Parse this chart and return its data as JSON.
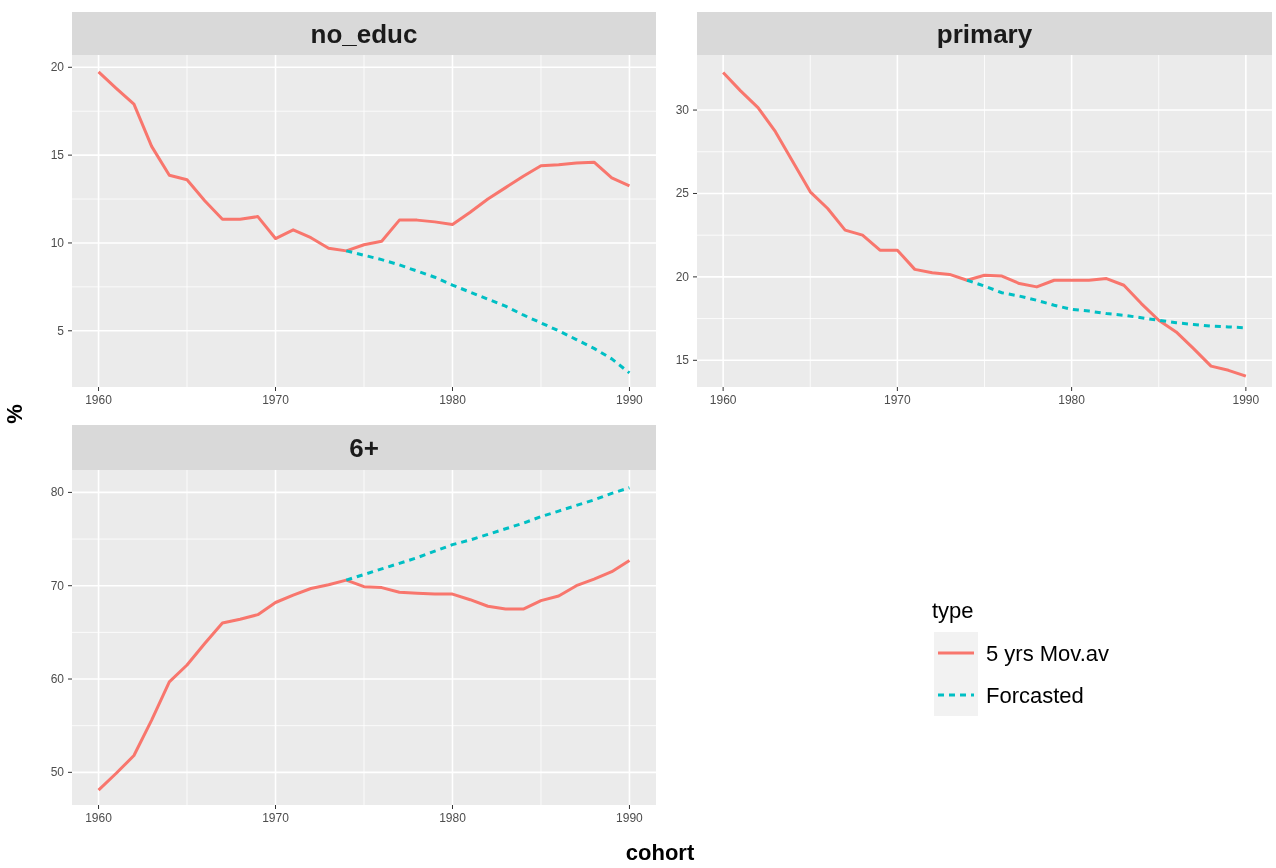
{
  "chart_data": [
    {
      "type": "line",
      "title": "no_educ",
      "ylabel": "%",
      "x": [
        1960,
        1961,
        1962,
        1963,
        1964,
        1965,
        1966,
        1967,
        1968,
        1969,
        1970,
        1971,
        1972,
        1973,
        1974,
        1975,
        1976,
        1977,
        1978,
        1979,
        1980,
        1981,
        1982,
        1983,
        1984,
        1985,
        1986,
        1987,
        1988,
        1989,
        1990
      ],
      "series": [
        {
          "color": "#f8766d",
          "line_style": "solid",
          "values": [
            19.74,
            18.8,
            17.9,
            15.5,
            13.85,
            13.6,
            12.4,
            11.35,
            11.35,
            11.5,
            10.25,
            10.75,
            10.3,
            9.7,
            9.55,
            9.9,
            10.1,
            11.3,
            11.3,
            11.2,
            11.05,
            11.75,
            12.5,
            13.15,
            13.8,
            14.4,
            14.45,
            14.55,
            14.6,
            13.7,
            13.25
          ]
        },
        {
          "color": "#00bfc4",
          "line_style": "dashed",
          "x": [
            1974,
            1975,
            1976,
            1977,
            1978,
            1979,
            1980,
            1981,
            1982,
            1983,
            1984,
            1985,
            1986,
            1987,
            1988,
            1989,
            1990
          ],
          "values": [
            9.55,
            9.3,
            9.05,
            8.75,
            8.4,
            8.05,
            7.6,
            7.2,
            6.8,
            6.4,
            5.9,
            5.45,
            5.0,
            4.5,
            4.0,
            3.4,
            2.6
          ]
        }
      ],
      "xlim": [
        1958.5,
        1991.5
      ],
      "xticks": [
        1960,
        1970,
        1980,
        1990
      ],
      "ylim": [
        1.8,
        20.7
      ],
      "yticks": [
        5,
        10,
        15,
        20
      ],
      "grid": true
    },
    {
      "type": "line",
      "title": "primary",
      "x": [
        1960,
        1961,
        1962,
        1963,
        1964,
        1965,
        1966,
        1967,
        1968,
        1969,
        1970,
        1971,
        1972,
        1973,
        1974,
        1975,
        1976,
        1977,
        1978,
        1979,
        1980,
        1981,
        1982,
        1983,
        1984,
        1985,
        1986,
        1987,
        1988,
        1989,
        1990
      ],
      "series": [
        {
          "color": "#f8766d",
          "line_style": "solid",
          "values": [
            32.25,
            31.15,
            30.15,
            28.7,
            26.9,
            25.1,
            24.1,
            22.8,
            22.5,
            21.6,
            21.6,
            20.45,
            20.25,
            20.15,
            19.8,
            20.1,
            20.05,
            19.6,
            19.4,
            19.8,
            19.8,
            19.8,
            19.9,
            19.5,
            18.4,
            17.4,
            16.7,
            15.7,
            14.65,
            14.4,
            14.05
          ]
        },
        {
          "color": "#00bfc4",
          "line_style": "dashed",
          "x": [
            1974,
            1975,
            1976,
            1977,
            1978,
            1979,
            1980,
            1981,
            1982,
            1983,
            1984,
            1985,
            1986,
            1987,
            1988,
            1989,
            1990
          ],
          "values": [
            19.8,
            19.45,
            19.05,
            18.85,
            18.6,
            18.3,
            18.05,
            17.95,
            17.8,
            17.7,
            17.55,
            17.4,
            17.25,
            17.15,
            17.05,
            17.0,
            16.95
          ]
        }
      ],
      "xlim": [
        1958.5,
        1991.5
      ],
      "xticks": [
        1960,
        1970,
        1980,
        1990
      ],
      "ylim": [
        13.4,
        33.3
      ],
      "yticks": [
        15,
        20,
        25,
        30
      ],
      "grid": true
    },
    {
      "type": "line",
      "title": "6+",
      "xlabel": "cohort",
      "legend_title": "type",
      "legend": "right",
      "x": [
        1960,
        1961,
        1962,
        1963,
        1964,
        1965,
        1966,
        1967,
        1968,
        1969,
        1970,
        1971,
        1972,
        1973,
        1974,
        1975,
        1976,
        1977,
        1978,
        1979,
        1980,
        1981,
        1982,
        1983,
        1984,
        1985,
        1986,
        1987,
        1988,
        1989,
        1990
      ],
      "series": [
        {
          "name": "5 yrs Mov.av",
          "color": "#f8766d",
          "line_style": "solid",
          "values": [
            48.1,
            49.9,
            51.8,
            55.6,
            59.7,
            61.5,
            63.8,
            66.0,
            66.4,
            66.9,
            68.2,
            69.0,
            69.7,
            70.1,
            70.6,
            69.9,
            69.8,
            69.3,
            69.2,
            69.1,
            69.1,
            68.5,
            67.8,
            67.5,
            67.5,
            68.4,
            68.9,
            70.0,
            70.7,
            71.5,
            72.7
          ]
        },
        {
          "name": "Forcasted",
          "color": "#00bfc4",
          "line_style": "dashed",
          "x": [
            1974,
            1975,
            1976,
            1977,
            1978,
            1979,
            1980,
            1981,
            1982,
            1983,
            1984,
            1985,
            1986,
            1987,
            1988,
            1989,
            1990
          ],
          "values": [
            70.6,
            71.2,
            71.8,
            72.4,
            73.0,
            73.7,
            74.4,
            74.9,
            75.5,
            76.1,
            76.7,
            77.4,
            78.0,
            78.6,
            79.2,
            79.9,
            80.5
          ]
        }
      ],
      "xlim": [
        1958.5,
        1991.5
      ],
      "xticks": [
        1960,
        1970,
        1980,
        1990
      ],
      "ylim": [
        46.5,
        82.4
      ],
      "yticks": [
        50,
        60,
        70,
        80
      ],
      "grid": true
    }
  ]
}
